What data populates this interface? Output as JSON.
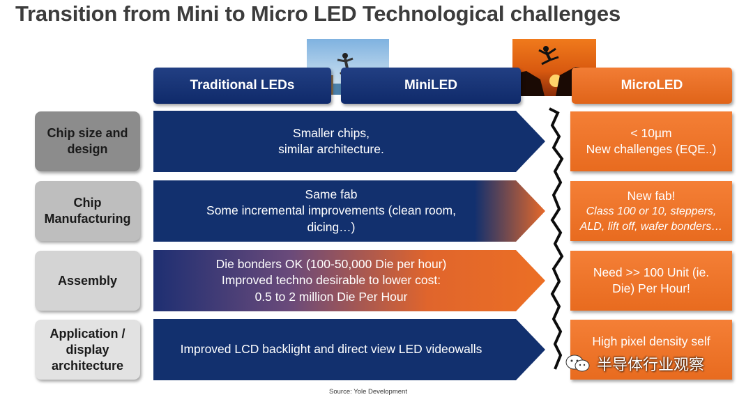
{
  "title": "Transition from Mini to Micro LED Technological challenges",
  "headers": {
    "traditional": "Traditional LEDs",
    "mini": "MiniLED",
    "micro": "MicroLED"
  },
  "rows": [
    {
      "label_lines": [
        "Chip size and",
        "design"
      ],
      "arrow_lines": [
        "Smaller chips,",
        "similar architecture."
      ],
      "micro_lines": [
        "< 10µm",
        "New challenges (EQE..)"
      ],
      "micro_italic": []
    },
    {
      "label_lines": [
        "Chip",
        "Manufacturing"
      ],
      "arrow_lines": [
        "Same fab",
        "Some incremental improvements (clean room,",
        "dicing…)"
      ],
      "micro_lines": [
        "New fab!"
      ],
      "micro_italic": [
        "Class 100 or 10, steppers,",
        "ALD, lift off, wafer bonders…"
      ]
    },
    {
      "label_lines": [
        "Assembly"
      ],
      "arrow_lines": [
        "Die bonders OK (100-50,000 Die per hour)",
        "Improved techno  desirable to lower cost:",
        "0.5 to 2 million Die Per Hour"
      ],
      "micro_lines": [
        "Need >> 100 Unit (ie.",
        "Die) Per Hour!"
      ],
      "micro_italic": []
    },
    {
      "label_lines": [
        "Application /",
        "display",
        "architecture"
      ],
      "arrow_lines": [
        "Improved LCD backlight and direct view LED videowalls"
      ],
      "micro_lines": [
        "High pixel density self"
      ],
      "micro_italic": []
    }
  ],
  "source": "Source: Yole Development",
  "watermark": "半导体行业观察",
  "colors": {
    "navy": "#12306e",
    "orange": "#ea6f22",
    "label_dark": "#8a8a8a",
    "label_mid": "#bdbdbd",
    "label_light": "#d6d6d6"
  }
}
